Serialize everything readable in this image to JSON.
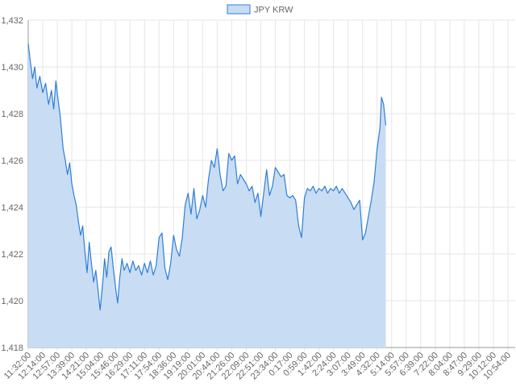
{
  "chart_data": {
    "type": "area",
    "title": "",
    "xlabel": "",
    "ylabel": "",
    "ylim": [
      1418,
      1432
    ],
    "yticks": [
      "1,418",
      "1,420",
      "1,422",
      "1,424",
      "1,426",
      "1,428",
      "1,430",
      "1,432"
    ],
    "xticks": [
      "11:32:00",
      "12:14:00",
      "12:57:00",
      "13:39:00",
      "14:21:00",
      "15:04:00",
      "15:46:00",
      "16:29:00",
      "17:11:00",
      "17:54:00",
      "18:36:00",
      "19:19:00",
      "20:01:00",
      "20:44:00",
      "21:26:00",
      "22:09:00",
      "22:51:00",
      "23:34:00",
      "0:17:00",
      "0:59:00",
      "1:42:00",
      "2:24:00",
      "3:07:00",
      "3:49:00",
      "4:32:00",
      "5:14:00",
      "5:57:00",
      "6:39:00",
      "7:22:00",
      "8:04:00",
      "8:47:00",
      "9:29:00",
      "10:12:00",
      "10:54:00"
    ],
    "grid": true,
    "legend_position": "top",
    "colors": {
      "line": "#2f7ed8",
      "fill": "#c8ddf3",
      "grid": "#e6e6e6",
      "axis": "#999999"
    },
    "series": [
      {
        "name": "JPY KRW",
        "values": [
          [
            0,
            1431.0
          ],
          [
            0.15,
            1430.2
          ],
          [
            0.3,
            1429.5
          ],
          [
            0.45,
            1430.0
          ],
          [
            0.6,
            1429.1
          ],
          [
            0.8,
            1429.6
          ],
          [
            1.0,
            1428.9
          ],
          [
            1.2,
            1429.3
          ],
          [
            1.4,
            1428.4
          ],
          [
            1.6,
            1429.0
          ],
          [
            1.75,
            1428.2
          ],
          [
            1.9,
            1429.4
          ],
          [
            2.05,
            1428.6
          ],
          [
            2.2,
            1427.9
          ],
          [
            2.4,
            1426.5
          ],
          [
            2.55,
            1426.0
          ],
          [
            2.7,
            1425.4
          ],
          [
            2.85,
            1425.9
          ],
          [
            3.0,
            1425.0
          ],
          [
            3.15,
            1424.5
          ],
          [
            3.3,
            1424.1
          ],
          [
            3.45,
            1423.4
          ],
          [
            3.6,
            1422.8
          ],
          [
            3.75,
            1423.2
          ],
          [
            3.9,
            1422.1
          ],
          [
            4.05,
            1421.2
          ],
          [
            4.2,
            1422.5
          ],
          [
            4.35,
            1421.6
          ],
          [
            4.5,
            1420.8
          ],
          [
            4.65,
            1421.3
          ],
          [
            4.8,
            1420.5
          ],
          [
            4.95,
            1419.6
          ],
          [
            5.1,
            1420.6
          ],
          [
            5.25,
            1421.8
          ],
          [
            5.4,
            1421.0
          ],
          [
            5.55,
            1422.1
          ],
          [
            5.7,
            1422.3
          ],
          [
            5.85,
            1421.4
          ],
          [
            6.0,
            1420.6
          ],
          [
            6.15,
            1419.9
          ],
          [
            6.3,
            1421.0
          ],
          [
            6.45,
            1421.8
          ],
          [
            6.6,
            1421.3
          ],
          [
            6.8,
            1421.6
          ],
          [
            7.0,
            1421.2
          ],
          [
            7.2,
            1421.7
          ],
          [
            7.4,
            1421.3
          ],
          [
            7.6,
            1421.5
          ],
          [
            7.8,
            1421.1
          ],
          [
            8.0,
            1421.6
          ],
          [
            8.2,
            1421.2
          ],
          [
            8.4,
            1421.7
          ],
          [
            8.6,
            1421.1
          ],
          [
            8.8,
            1421.5
          ],
          [
            9.0,
            1422.7
          ],
          [
            9.2,
            1422.9
          ],
          [
            9.4,
            1421.4
          ],
          [
            9.6,
            1420.9
          ],
          [
            9.8,
            1421.6
          ],
          [
            10.0,
            1422.8
          ],
          [
            10.2,
            1422.2
          ],
          [
            10.4,
            1421.9
          ],
          [
            10.6,
            1422.7
          ],
          [
            10.8,
            1424.1
          ],
          [
            11.0,
            1424.6
          ],
          [
            11.2,
            1423.7
          ],
          [
            11.4,
            1424.8
          ],
          [
            11.6,
            1423.5
          ],
          [
            11.8,
            1423.9
          ],
          [
            12.0,
            1424.5
          ],
          [
            12.2,
            1424.0
          ],
          [
            12.4,
            1425.2
          ],
          [
            12.6,
            1426.0
          ],
          [
            12.8,
            1425.7
          ],
          [
            13.0,
            1426.5
          ],
          [
            13.2,
            1425.4
          ],
          [
            13.4,
            1424.7
          ],
          [
            13.6,
            1424.9
          ],
          [
            13.8,
            1426.3
          ],
          [
            14.0,
            1426.0
          ],
          [
            14.2,
            1426.2
          ],
          [
            14.4,
            1425.0
          ],
          [
            14.6,
            1425.4
          ],
          [
            14.8,
            1425.2
          ],
          [
            15.0,
            1425.0
          ],
          [
            15.2,
            1424.7
          ],
          [
            15.4,
            1424.9
          ],
          [
            15.6,
            1424.2
          ],
          [
            15.8,
            1424.6
          ],
          [
            16.0,
            1423.6
          ],
          [
            16.2,
            1424.6
          ],
          [
            16.4,
            1425.6
          ],
          [
            16.6,
            1424.5
          ],
          [
            16.8,
            1424.9
          ],
          [
            17.0,
            1425.7
          ],
          [
            17.2,
            1425.5
          ],
          [
            17.4,
            1425.3
          ],
          [
            17.6,
            1425.4
          ],
          [
            17.8,
            1424.5
          ],
          [
            18.0,
            1424.4
          ],
          [
            18.2,
            1424.5
          ],
          [
            18.4,
            1424.3
          ],
          [
            18.6,
            1423.2
          ],
          [
            18.8,
            1422.7
          ],
          [
            19.0,
            1424.4
          ],
          [
            19.2,
            1424.8
          ],
          [
            19.4,
            1424.7
          ],
          [
            19.6,
            1424.9
          ],
          [
            19.8,
            1424.6
          ],
          [
            20.0,
            1424.8
          ],
          [
            20.2,
            1424.7
          ],
          [
            20.4,
            1424.9
          ],
          [
            20.6,
            1424.6
          ],
          [
            20.8,
            1424.8
          ],
          [
            21.0,
            1424.7
          ],
          [
            21.2,
            1424.9
          ],
          [
            21.4,
            1424.6
          ],
          [
            21.6,
            1424.8
          ],
          [
            21.8,
            1424.6
          ],
          [
            22.0,
            1424.4
          ],
          [
            22.2,
            1424.2
          ],
          [
            22.4,
            1423.9
          ],
          [
            22.6,
            1424.1
          ],
          [
            22.8,
            1424.3
          ],
          [
            23.0,
            1422.6
          ],
          [
            23.2,
            1422.9
          ],
          [
            23.4,
            1423.6
          ],
          [
            23.6,
            1424.3
          ],
          [
            23.8,
            1425.1
          ],
          [
            24.0,
            1426.5
          ],
          [
            24.2,
            1427.4
          ],
          [
            24.3,
            1428.7
          ],
          [
            24.45,
            1428.4
          ],
          [
            24.6,
            1427.5
          ]
        ]
      }
    ]
  }
}
